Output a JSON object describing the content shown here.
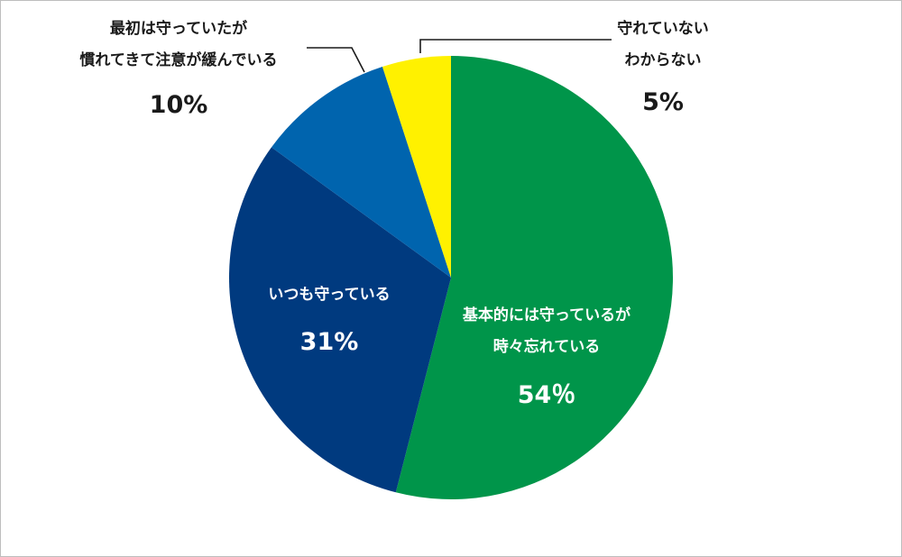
{
  "chart_data": {
    "type": "pie",
    "start": "12 o'clock",
    "direction": "clockwise",
    "slices": [
      {
        "lines": [
          "基本的には守っているが",
          "時々忘れている"
        ],
        "value": 54,
        "value_label": "54％",
        "color": "#00954a",
        "text_color": "#ffffff"
      },
      {
        "lines": [
          "いつも守っている"
        ],
        "value": 31,
        "value_label": "31%",
        "color": "#003a7f",
        "text_color": "#ffffff"
      },
      {
        "lines": [
          "最初は守っていたが",
          "慣れてきて注意が緩んでいる"
        ],
        "value": 10,
        "value_label": "10%",
        "color": "#0064ae",
        "text_color": "#1a1a1a"
      },
      {
        "lines": [
          "守れていない",
          "わからない"
        ],
        "value": 5,
        "value_label": "5%",
        "color": "#fff100",
        "text_color": "#1a1a1a"
      }
    ]
  }
}
